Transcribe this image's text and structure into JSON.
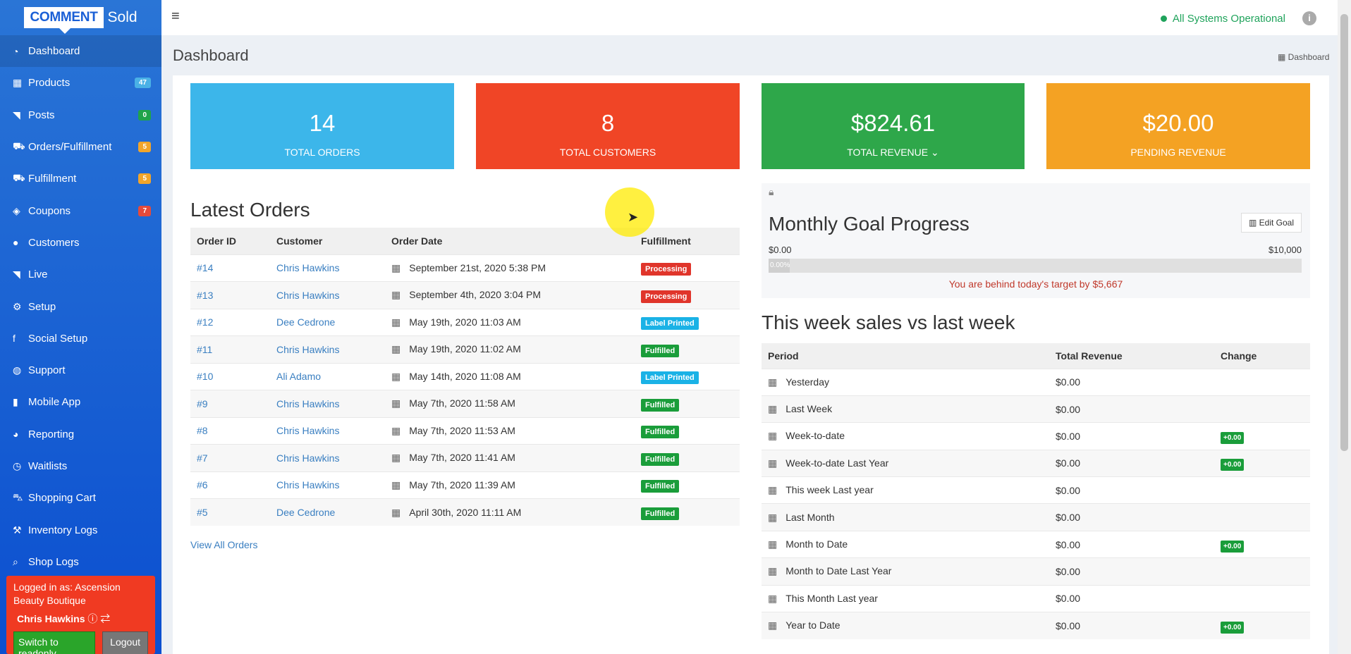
{
  "logo": {
    "comment": "COMMENT",
    "sold": "Sold"
  },
  "sidebar": {
    "items": [
      {
        "icon": "dashboard-icon",
        "glyph": "◔",
        "label": "Dashboard",
        "badge": "",
        "active": true
      },
      {
        "icon": "products-icon",
        "glyph": "▦",
        "label": "Products",
        "badge": "47",
        "badgeColor": "blue"
      },
      {
        "icon": "rss-icon",
        "glyph": "◥",
        "label": "Posts",
        "badge": "0",
        "badgeColor": "green"
      },
      {
        "icon": "truck-icon",
        "glyph": "⛟",
        "label": "Orders/Fulfillment",
        "badge": "5",
        "badgeColor": "orange"
      },
      {
        "icon": "truck-icon",
        "glyph": "⛟",
        "label": "Fulfillment",
        "badge": "5",
        "badgeColor": "orange"
      },
      {
        "icon": "tag-icon",
        "glyph": "◈",
        "label": "Coupons",
        "badge": "7",
        "badgeColor": "red"
      },
      {
        "icon": "user-icon",
        "glyph": "●",
        "label": "Customers",
        "badge": ""
      },
      {
        "icon": "rss-icon",
        "glyph": "◥",
        "label": "Live",
        "badge": ""
      },
      {
        "icon": "gears-icon",
        "glyph": "⚙",
        "label": "Setup",
        "badge": ""
      },
      {
        "icon": "facebook-icon",
        "glyph": "f",
        "label": "Social Setup",
        "badge": ""
      },
      {
        "icon": "comments-icon",
        "glyph": "◍",
        "label": "Support",
        "badge": ""
      },
      {
        "icon": "mobile-icon",
        "glyph": "▮",
        "label": "Mobile App",
        "badge": ""
      },
      {
        "icon": "pie-chart-icon",
        "glyph": "◕",
        "label": "Reporting",
        "badge": ""
      },
      {
        "icon": "clock-icon",
        "glyph": "◷",
        "label": "Waitlists",
        "badge": ""
      },
      {
        "icon": "cart-icon",
        "glyph": "⛍",
        "label": "Shopping Cart",
        "badge": ""
      },
      {
        "icon": "wrench-icon",
        "glyph": "⚒",
        "label": "Inventory Logs",
        "badge": ""
      },
      {
        "icon": "search-icon",
        "glyph": "⌕",
        "label": "Shop Logs",
        "badge": ""
      }
    ]
  },
  "login": {
    "logged_in_as": "Logged in as: Ascension Beauty Boutique",
    "user": "Chris Hawkins",
    "readonly_button": "Switch to readonly",
    "logout_button": "Logout"
  },
  "header": {
    "status": "All Systems Operational"
  },
  "page": {
    "title": "Dashboard",
    "breadcrumb": "Dashboard"
  },
  "stats": [
    {
      "value": "14",
      "label": "TOTAL ORDERS",
      "color": "#3cb6ea"
    },
    {
      "value": "8",
      "label": "TOTAL CUSTOMERS",
      "color": "#f04526"
    },
    {
      "value": "$824.61",
      "label": "TOTAL REVENUE",
      "color": "#2ea74a"
    },
    {
      "value": "$20.00",
      "label": "PENDING REVENUE",
      "color": "#f4a223"
    }
  ],
  "latest_orders": {
    "title": "Latest Orders",
    "columns": [
      "Order ID",
      "Customer",
      "Order Date",
      "Fulfillment"
    ],
    "rows": [
      {
        "id": "#14",
        "customer": "Chris Hawkins",
        "date": "September 21st, 2020 5:38 PM",
        "status": "Processing"
      },
      {
        "id": "#13",
        "customer": "Chris Hawkins",
        "date": "September 4th, 2020 3:04 PM",
        "status": "Processing"
      },
      {
        "id": "#12",
        "customer": "Dee Cedrone",
        "date": "May 19th, 2020 11:03 AM",
        "status": "Label Printed"
      },
      {
        "id": "#11",
        "customer": "Chris Hawkins",
        "date": "May 19th, 2020 11:02 AM",
        "status": "Fulfilled"
      },
      {
        "id": "#10",
        "customer": "Ali Adamo",
        "date": "May 14th, 2020 11:08 AM",
        "status": "Label Printed"
      },
      {
        "id": "#9",
        "customer": "Chris Hawkins",
        "date": "May 7th, 2020 11:58 AM",
        "status": "Fulfilled"
      },
      {
        "id": "#8",
        "customer": "Chris Hawkins",
        "date": "May 7th, 2020 11:53 AM",
        "status": "Fulfilled"
      },
      {
        "id": "#7",
        "customer": "Chris Hawkins",
        "date": "May 7th, 2020 11:41 AM",
        "status": "Fulfilled"
      },
      {
        "id": "#6",
        "customer": "Chris Hawkins",
        "date": "May 7th, 2020 11:39 AM",
        "status": "Fulfilled"
      },
      {
        "id": "#5",
        "customer": "Dee Cedrone",
        "date": "April 30th, 2020 11:11 AM",
        "status": "Fulfilled"
      }
    ],
    "view_all": "View All Orders"
  },
  "goal": {
    "title": "Monthly Goal Progress",
    "edit_button": "Edit Goal",
    "min": "$0.00",
    "max": "$10,000",
    "progress_text": "0.00%",
    "progress_fraction": 0,
    "behind_text": "You are behind today's target by $5,667"
  },
  "week_sales": {
    "title": "This week sales vs last week",
    "columns": [
      "Period",
      "Total Revenue",
      "Change"
    ],
    "rows": [
      {
        "period": "Yesterday",
        "revenue": "$0.00",
        "change": ""
      },
      {
        "period": "Last Week",
        "revenue": "$0.00",
        "change": ""
      },
      {
        "period": "Week-to-date",
        "revenue": "$0.00",
        "change": "+0.00"
      },
      {
        "period": "Week-to-date Last Year",
        "revenue": "$0.00",
        "change": "+0.00"
      },
      {
        "period": "This week Last year",
        "revenue": "$0.00",
        "change": ""
      },
      {
        "period": "Last Month",
        "revenue": "$0.00",
        "change": ""
      },
      {
        "period": "Month to Date",
        "revenue": "$0.00",
        "change": "+0.00"
      },
      {
        "period": "Month to Date Last Year",
        "revenue": "$0.00",
        "change": ""
      },
      {
        "period": "This Month Last year",
        "revenue": "$0.00",
        "change": ""
      },
      {
        "period": "Year to Date",
        "revenue": "$0.00",
        "change": "+0.00"
      }
    ]
  }
}
